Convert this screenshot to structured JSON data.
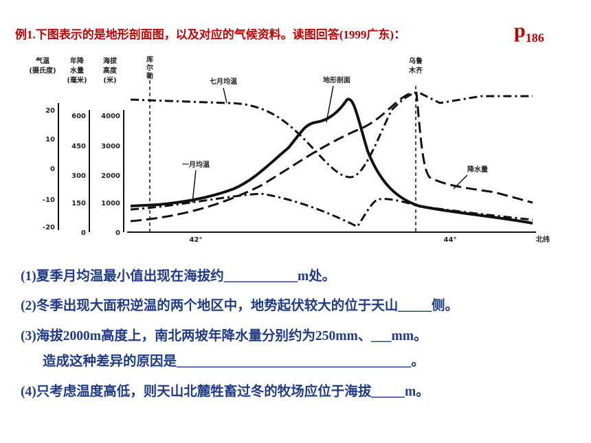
{
  "header": {
    "title": "例1.下图表示的是地形剖面图，以及对应的气候资料。读图回答(1999广东)：",
    "page_letter": "p",
    "page_number": "186"
  },
  "figure": {
    "axes": [
      {
        "title": [
          "气温",
          "(摄氏度)"
        ],
        "ticks": [
          "20",
          "10",
          "0",
          "-10",
          "-20"
        ]
      },
      {
        "title": [
          "年降",
          "水量",
          "(毫米)"
        ],
        "ticks": [
          "600",
          "450",
          "300",
          "150",
          "0"
        ]
      },
      {
        "title": [
          "海拔",
          "高度",
          "(米)"
        ],
        "ticks": [
          "4000",
          "3000",
          "2000",
          "1000",
          "0"
        ]
      }
    ],
    "x_ticks": [
      "42°",
      "44°"
    ],
    "x_label": "北纬",
    "places": [
      [
        "库",
        "尔",
        "勒"
      ],
      [
        "乌鲁",
        "木齐"
      ]
    ],
    "curve_labels": {
      "july": "七月均温",
      "terrain": "地形剖面",
      "january": "一月均温",
      "precipitation": "降水量"
    }
  },
  "questions": [
    "(1)夏季月均温最小值出现在海拔约___________m处。",
    "(2)冬季出现大面积逆温的两个地区中，地势起伏较大的位于天山_____侧。",
    "(3)海拔2000m高度上，南北两坡年降水量分别约为250mm、___mm。",
    "造成这种差异的原因是___________________________________。",
    "(4)只考虑温度高低，则天山北麓牲畜过冬的牧场应位于海拔_____m。"
  ]
}
